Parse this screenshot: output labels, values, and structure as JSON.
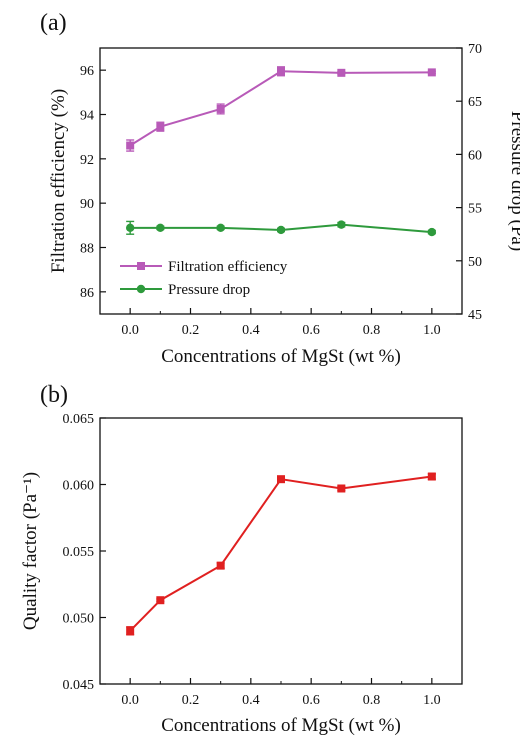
{
  "chart_data": [
    {
      "panel_label": "(a)",
      "type": "line",
      "xlabel": "Concentrations of MgSt (wt %)",
      "xlim": [
        -0.1,
        1.1
      ],
      "xticks": [
        "0.0",
        "0.2",
        "0.4",
        "0.6",
        "0.8",
        "1.0"
      ],
      "ylabel": "Filtration efficiency (%)",
      "ylim": [
        85,
        97
      ],
      "yticks": [
        "86",
        "88",
        "90",
        "92",
        "94",
        "96"
      ],
      "y2label": "Pressure drop (Pa)",
      "y2lim": [
        45,
        70
      ],
      "y2ticks": [
        "45",
        "50",
        "55",
        "60",
        "65",
        "70"
      ],
      "legend_position": "lower-left",
      "series": [
        {
          "name": "Filtration efficiency",
          "axis": "left",
          "marker": "square",
          "color": "#B85AB8",
          "x": [
            0.0,
            0.1,
            0.3,
            0.5,
            0.7,
            1.0
          ],
          "y": [
            92.6,
            93.45,
            94.25,
            95.95,
            95.88,
            95.9
          ],
          "err": [
            0.25,
            0.2,
            0.22,
            0.2,
            0.05,
            0.05
          ]
        },
        {
          "name": "Pressure drop",
          "axis": "right",
          "marker": "circle",
          "color": "#2E9A3C",
          "x": [
            0.0,
            0.1,
            0.3,
            0.5,
            0.7,
            1.0
          ],
          "y": [
            53.1,
            53.1,
            53.1,
            52.9,
            53.4,
            52.7
          ],
          "err": [
            0.6,
            0.15,
            0.15,
            0.15,
            0.2,
            0.15
          ]
        }
      ]
    },
    {
      "panel_label": "(b)",
      "type": "line",
      "xlabel": "Concentrations of MgSt (wt %)",
      "xlim": [
        -0.1,
        1.1
      ],
      "xticks": [
        "0.0",
        "0.2",
        "0.4",
        "0.6",
        "0.8",
        "1.0"
      ],
      "ylabel": "Quality factor (Pa⁻¹)",
      "ylim": [
        0.045,
        0.065
      ],
      "yticks": [
        "0.045",
        "0.050",
        "0.055",
        "0.060",
        "0.065"
      ],
      "series": [
        {
          "marker": "square",
          "color": "#E02020",
          "x": [
            0.0,
            0.1,
            0.3,
            0.5,
            0.7,
            1.0
          ],
          "y": [
            0.049,
            0.0513,
            0.0539,
            0.0604,
            0.0597,
            0.0606
          ],
          "err": [
            0.0003,
            0.0001,
            0.0002,
            0.0002,
            0.00015,
            0.0002
          ]
        }
      ]
    }
  ]
}
